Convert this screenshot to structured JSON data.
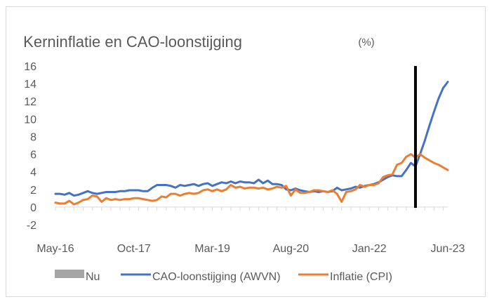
{
  "chart_data": {
    "type": "line",
    "title": "Kerninflatie en CAO-loonstijging",
    "title_unit": "(%)",
    "ylim": [
      -2,
      16
    ],
    "yticks": [
      -2,
      0,
      2,
      4,
      6,
      8,
      10,
      12,
      14,
      16
    ],
    "x_range": [
      "May-16",
      "Jun-23"
    ],
    "xticks": [
      "May-16",
      "Oct-17",
      "Mar-19",
      "Aug-20",
      "Jan-22",
      "Jun-23"
    ],
    "nu_marker": {
      "label": "Nu",
      "x": "Nov-22",
      "color": "#000000"
    },
    "series": [
      {
        "name": "CAO-loonstijging (AWVN)",
        "color": "#4472C4",
        "points": [
          [
            "May-16",
            1.5
          ],
          [
            "Jun-16",
            1.5
          ],
          [
            "Jul-16",
            1.4
          ],
          [
            "Aug-16",
            1.6
          ],
          [
            "Sep-16",
            1.3
          ],
          [
            "Oct-16",
            1.4
          ],
          [
            "Nov-16",
            1.6
          ],
          [
            "Dec-16",
            1.8
          ],
          [
            "Jan-17",
            1.6
          ],
          [
            "Feb-17",
            1.5
          ],
          [
            "Mar-17",
            1.6
          ],
          [
            "Apr-17",
            1.7
          ],
          [
            "May-17",
            1.7
          ],
          [
            "Jun-17",
            1.7
          ],
          [
            "Jul-17",
            1.8
          ],
          [
            "Aug-17",
            1.8
          ],
          [
            "Sep-17",
            1.9
          ],
          [
            "Oct-17",
            1.9
          ],
          [
            "Nov-17",
            1.9
          ],
          [
            "Dec-17",
            1.8
          ],
          [
            "Jan-18",
            1.8
          ],
          [
            "Feb-18",
            2.2
          ],
          [
            "Mar-18",
            2.5
          ],
          [
            "Apr-18",
            2.5
          ],
          [
            "May-18",
            2.5
          ],
          [
            "Jun-18",
            2.4
          ],
          [
            "Jul-18",
            2.2
          ],
          [
            "Aug-18",
            2.5
          ],
          [
            "Sep-18",
            2.4
          ],
          [
            "Oct-18",
            2.5
          ],
          [
            "Nov-18",
            2.6
          ],
          [
            "Dec-18",
            2.4
          ],
          [
            "Jan-19",
            2.6
          ],
          [
            "Feb-19",
            2.7
          ],
          [
            "Mar-19",
            2.4
          ],
          [
            "Apr-19",
            2.6
          ],
          [
            "May-19",
            2.8
          ],
          [
            "Jun-19",
            2.7
          ],
          [
            "Jul-19",
            2.9
          ],
          [
            "Aug-19",
            2.7
          ],
          [
            "Sep-19",
            2.9
          ],
          [
            "Oct-19",
            2.8
          ],
          [
            "Nov-19",
            2.8
          ],
          [
            "Dec-19",
            2.7
          ],
          [
            "Jan-20",
            3.1
          ],
          [
            "Feb-20",
            2.7
          ],
          [
            "Mar-20",
            3.0
          ],
          [
            "Apr-20",
            2.6
          ],
          [
            "May-20",
            2.6
          ],
          [
            "Jun-20",
            2.5
          ],
          [
            "Jul-20",
            2.0
          ],
          [
            "Aug-20",
            1.9
          ],
          [
            "Sep-20",
            2.1
          ],
          [
            "Oct-20",
            1.9
          ],
          [
            "Nov-20",
            1.8
          ],
          [
            "Dec-20",
            1.7
          ],
          [
            "Jan-21",
            1.8
          ],
          [
            "Feb-21",
            1.7
          ],
          [
            "Mar-21",
            1.8
          ],
          [
            "Apr-21",
            1.7
          ],
          [
            "May-21",
            1.8
          ],
          [
            "Jun-21",
            2.2
          ],
          [
            "Jul-21",
            1.9
          ],
          [
            "Aug-21",
            2.0
          ],
          [
            "Sep-21",
            2.1
          ],
          [
            "Oct-21",
            2.3
          ],
          [
            "Nov-21",
            2.2
          ],
          [
            "Dec-21",
            2.4
          ],
          [
            "Jan-22",
            2.5
          ],
          [
            "Feb-22",
            2.6
          ],
          [
            "Mar-22",
            2.8
          ],
          [
            "Apr-22",
            3.1
          ],
          [
            "May-22",
            3.4
          ],
          [
            "Jun-22",
            3.6
          ],
          [
            "Jul-22",
            3.5
          ],
          [
            "Aug-22",
            3.5
          ],
          [
            "Sep-22",
            4.2
          ],
          [
            "Oct-22",
            5.0
          ],
          [
            "Nov-22",
            4.6
          ],
          [
            "Dec-22",
            6.0
          ],
          [
            "Jan-23",
            7.5
          ],
          [
            "Feb-23",
            9.2
          ],
          [
            "Mar-23",
            10.8
          ],
          [
            "Apr-23",
            12.3
          ],
          [
            "May-23",
            13.5
          ],
          [
            "Jun-23",
            14.2
          ]
        ]
      },
      {
        "name": "Inflatie (CPI)",
        "color": "#ED7D31",
        "points": [
          [
            "May-16",
            0.5
          ],
          [
            "Jun-16",
            0.4
          ],
          [
            "Jul-16",
            0.4
          ],
          [
            "Aug-16",
            0.7
          ],
          [
            "Sep-16",
            0.3
          ],
          [
            "Oct-16",
            0.5
          ],
          [
            "Nov-16",
            0.8
          ],
          [
            "Dec-16",
            0.9
          ],
          [
            "Jan-17",
            1.3
          ],
          [
            "Feb-17",
            1.2
          ],
          [
            "Mar-17",
            0.6
          ],
          [
            "Apr-17",
            1.0
          ],
          [
            "May-17",
            0.8
          ],
          [
            "Jun-17",
            0.9
          ],
          [
            "Jul-17",
            0.8
          ],
          [
            "Aug-17",
            0.9
          ],
          [
            "Sep-17",
            0.9
          ],
          [
            "Oct-17",
            1.0
          ],
          [
            "Nov-17",
            1.0
          ],
          [
            "Dec-17",
            0.9
          ],
          [
            "Jan-18",
            0.8
          ],
          [
            "Feb-18",
            0.7
          ],
          [
            "Mar-18",
            0.8
          ],
          [
            "Apr-18",
            1.2
          ],
          [
            "May-18",
            1.1
          ],
          [
            "Jun-18",
            1.5
          ],
          [
            "Jul-18",
            1.5
          ],
          [
            "Aug-18",
            1.3
          ],
          [
            "Sep-18",
            1.5
          ],
          [
            "Oct-18",
            1.6
          ],
          [
            "Nov-18",
            1.5
          ],
          [
            "Dec-18",
            1.6
          ],
          [
            "Jan-19",
            1.9
          ],
          [
            "Feb-19",
            2.0
          ],
          [
            "Mar-19",
            1.8
          ],
          [
            "Apr-19",
            2.0
          ],
          [
            "May-19",
            1.8
          ],
          [
            "Jun-19",
            2.0
          ],
          [
            "Jul-19",
            2.5
          ],
          [
            "Aug-19",
            2.2
          ],
          [
            "Sep-19",
            2.3
          ],
          [
            "Oct-19",
            2.1
          ],
          [
            "Nov-19",
            2.2
          ],
          [
            "Dec-19",
            2.2
          ],
          [
            "Jan-20",
            2.1
          ],
          [
            "Feb-20",
            2.2
          ],
          [
            "Mar-20",
            2.0
          ],
          [
            "Apr-20",
            2.1
          ],
          [
            "May-20",
            2.3
          ],
          [
            "Jun-20",
            2.2
          ],
          [
            "Jul-20",
            2.4
          ],
          [
            "Aug-20",
            1.3
          ],
          [
            "Sep-20",
            2.0
          ],
          [
            "Oct-20",
            1.6
          ],
          [
            "Nov-20",
            1.6
          ],
          [
            "Dec-20",
            1.7
          ],
          [
            "Jan-21",
            1.9
          ],
          [
            "Feb-21",
            1.9
          ],
          [
            "Mar-21",
            1.8
          ],
          [
            "Apr-21",
            1.7
          ],
          [
            "May-21",
            1.9
          ],
          [
            "Jun-21",
            1.5
          ],
          [
            "Jul-21",
            0.6
          ],
          [
            "Aug-21",
            1.7
          ],
          [
            "Sep-21",
            1.8
          ],
          [
            "Oct-21",
            2.0
          ],
          [
            "Nov-21",
            2.5
          ],
          [
            "Dec-21",
            2.3
          ],
          [
            "Jan-22",
            2.5
          ],
          [
            "Feb-22",
            2.5
          ],
          [
            "Mar-22",
            2.7
          ],
          [
            "Apr-22",
            3.4
          ],
          [
            "May-22",
            3.6
          ],
          [
            "Jun-22",
            3.7
          ],
          [
            "Jul-22",
            4.8
          ],
          [
            "Aug-22",
            5.0
          ],
          [
            "Sep-22",
            5.7
          ],
          [
            "Oct-22",
            6.0
          ],
          [
            "Nov-22",
            5.6
          ],
          [
            "Dec-22",
            6.0
          ],
          [
            "Jan-23",
            5.6
          ],
          [
            "Feb-23",
            5.3
          ],
          [
            "Mar-23",
            5.0
          ],
          [
            "Apr-23",
            4.8
          ],
          [
            "May-23",
            4.5
          ],
          [
            "Jun-23",
            4.2
          ]
        ]
      }
    ],
    "legend": [
      {
        "label": "Nu",
        "color": "#A5A5A5",
        "kind": "box"
      },
      {
        "label": "CAO-loonstijging (AWVN)",
        "color": "#4472C4",
        "kind": "line"
      },
      {
        "label": "Inflatie (CPI)",
        "color": "#ED7D31",
        "kind": "line"
      }
    ],
    "grid": false,
    "axis_color": "#D9D9D9",
    "text_color": "#595959"
  }
}
